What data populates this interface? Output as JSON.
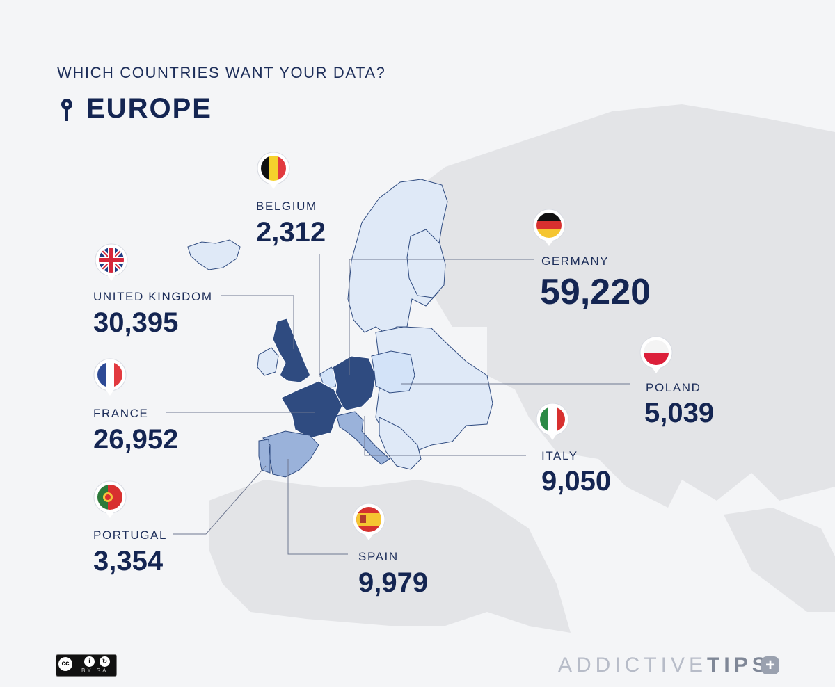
{
  "header": {
    "subtitle": "WHICH COUNTRIES WANT YOUR DATA?",
    "title": "EUROPE",
    "pin_icon": "map-pin-icon"
  },
  "colors": {
    "background": "#f4f5f7",
    "world_land": "#e3e4e7",
    "europe_light": "#dfe9f7",
    "highlight_light": "#d3e3f8",
    "highlight_mid": "#9ab2da",
    "highlight_dark": "#2f4b80",
    "text_dark": "#142552",
    "leader_line": "#6e7790"
  },
  "countries": [
    {
      "key": "belgium",
      "name": "BELGIUM",
      "value": "2,312",
      "flag": "belgium-flag-icon"
    },
    {
      "key": "uk",
      "name": "UNITED KINGDOM",
      "value": "30,395",
      "flag": "uk-flag-icon"
    },
    {
      "key": "france",
      "name": "FRANCE",
      "value": "26,952",
      "flag": "france-flag-icon"
    },
    {
      "key": "portugal",
      "name": "PORTUGAL",
      "value": "3,354",
      "flag": "portugal-flag-icon"
    },
    {
      "key": "spain",
      "name": "SPAIN",
      "value": "9,979",
      "flag": "spain-flag-icon"
    },
    {
      "key": "germany",
      "name": "GERMANY",
      "value": "59,220",
      "flag": "germany-flag-icon"
    },
    {
      "key": "poland",
      "name": "POLAND",
      "value": "5,039",
      "flag": "poland-flag-icon"
    },
    {
      "key": "italy",
      "name": "ITALY",
      "value": "9,050",
      "flag": "italy-flag-icon"
    }
  ],
  "license": {
    "cc": "cc",
    "by": "i",
    "sa": "↻",
    "text": "BY SA"
  },
  "brand": {
    "light": "ADDICTIVE",
    "bold": "TIPS",
    "icon": "+"
  }
}
